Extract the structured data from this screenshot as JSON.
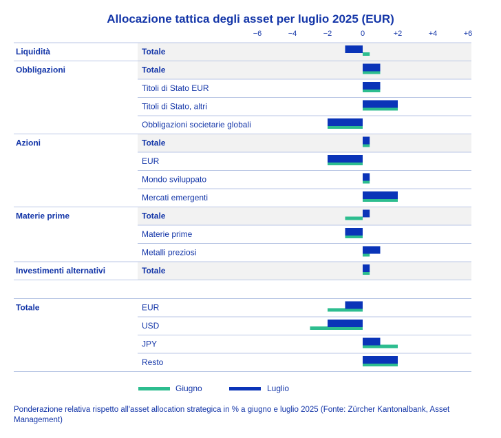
{
  "title": "Allocazione tattica degli asset per luglio 2025 (EUR)",
  "footnote": "Ponderazione relativa rispetto all'asset allocation strategica in % a giugno e luglio 2025 (Fonte: Zürcher Kantonalbank, Asset Management)",
  "colors": {
    "giugno": "#2dbd8f",
    "luglio": "#0a34b8",
    "text": "#1436a8",
    "shade": "#f2f2f2",
    "rule": "#b9c6e4"
  },
  "chart_data": {
    "type": "bar",
    "orientation": "horizontal",
    "title": "Allocazione tattica degli asset per luglio 2025 (EUR)",
    "xlim": [
      -6,
      6
    ],
    "xticks": [
      -6,
      -4,
      -2,
      0,
      2,
      4,
      6
    ],
    "xtick_labels": [
      "−6",
      "−4",
      "−2",
      "0",
      "+2",
      "+4",
      "+6"
    ],
    "legend": {
      "position": "bottom",
      "entries": [
        "Giugno",
        "Luglio"
      ]
    },
    "series_names": [
      "Giugno",
      "Luglio"
    ],
    "rows": [
      {
        "group": "Liquidità",
        "category": "Totale",
        "bold": true,
        "giugno": 0.4,
        "luglio": -1.0
      },
      {
        "group": "Obbligazioni",
        "category": "Totale",
        "bold": true,
        "giugno": 1.0,
        "luglio": 1.0
      },
      {
        "group": "",
        "category": "Titoli di Stato EUR",
        "bold": false,
        "giugno": 1.0,
        "luglio": 1.0
      },
      {
        "group": "",
        "category": "Titoli di Stato, altri",
        "bold": false,
        "giugno": 2.0,
        "luglio": 2.0
      },
      {
        "group": "",
        "category": "Obbligazioni societarie globali",
        "bold": false,
        "giugno": -2.0,
        "luglio": -2.0
      },
      {
        "group": "Azioni",
        "category": "Totale",
        "bold": true,
        "giugno": 0.4,
        "luglio": 0.4
      },
      {
        "group": "",
        "category": "EUR",
        "bold": false,
        "giugno": -2.0,
        "luglio": -2.0
      },
      {
        "group": "",
        "category": "Mondo sviluppato",
        "bold": false,
        "giugno": 0.4,
        "luglio": 0.4
      },
      {
        "group": "",
        "category": "Mercati emergenti",
        "bold": false,
        "giugno": 2.0,
        "luglio": 2.0
      },
      {
        "group": "Materie prime",
        "category": "Totale",
        "bold": true,
        "giugno": -1.0,
        "luglio": 0.4
      },
      {
        "group": "",
        "category": "Materie prime",
        "bold": false,
        "giugno": -1.0,
        "luglio": -1.0
      },
      {
        "group": "",
        "category": "Metalli preziosi",
        "bold": false,
        "giugno": 0.4,
        "luglio": 1.0
      },
      {
        "group": "Investimenti alternativi",
        "category": "Totale",
        "bold": true,
        "giugno": 0.4,
        "luglio": 0.4
      },
      {
        "group": "Totale",
        "category": "EUR",
        "bold": false,
        "giugno": -2.0,
        "luglio": -1.0
      },
      {
        "group": "",
        "category": "USD",
        "bold": false,
        "giugno": -3.0,
        "luglio": -2.0
      },
      {
        "group": "",
        "category": "JPY",
        "bold": false,
        "giugno": 2.0,
        "luglio": 1.0
      },
      {
        "group": "",
        "category": "Resto",
        "bold": false,
        "giugno": 2.0,
        "luglio": 2.0
      }
    ]
  }
}
